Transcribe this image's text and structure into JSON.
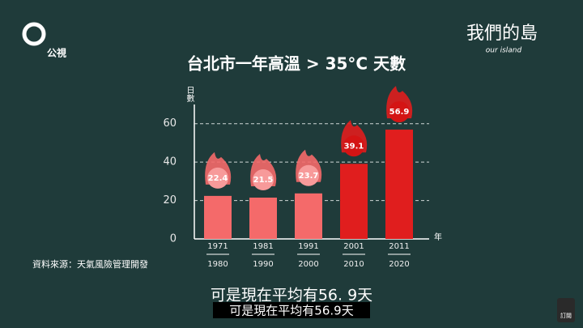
{
  "logo": "公視",
  "brand": "我們的島",
  "brand_sub": "our island",
  "source": "資料來源：天氣風險管理開發",
  "caption_large": "可是現在平均有56. 9天",
  "caption_small": "可是現在平均有56.9天",
  "subscribe": "訂閱",
  "chart_data": {
    "type": "bar",
    "title": "台北市一年高溫 > 35°C 天數",
    "y_label": "日數",
    "x_label": "年",
    "categories": [
      "1971",
      "1981",
      "1991",
      "2001",
      "2011"
    ],
    "category_ends": [
      "1980",
      "1990",
      "2000",
      "2010",
      "2020"
    ],
    "values": [
      22.4,
      21.5,
      23.7,
      39.1,
      56.9
    ],
    "colors": [
      "#f46a6a",
      "#f46a6a",
      "#f46a6a",
      "#e01e1e",
      "#e01e1e"
    ],
    "ylim": [
      0,
      70
    ],
    "yticks": [
      0,
      20,
      40,
      60
    ],
    "grid": true
  }
}
